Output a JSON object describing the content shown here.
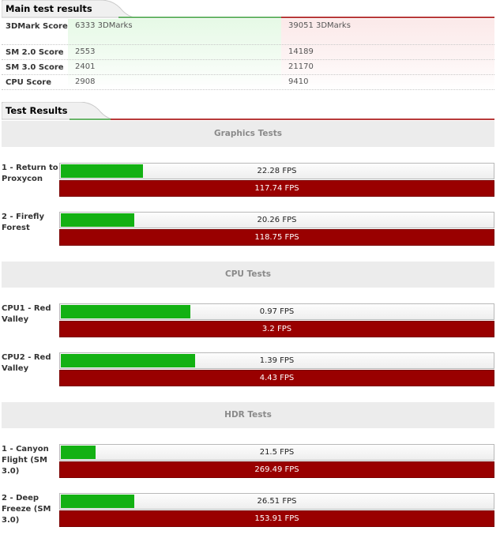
{
  "main_section": {
    "title": "Main test results",
    "rows": [
      {
        "label": "3DMark Score",
        "value_a": "6333 3DMarks",
        "value_b": "39051 3DMarks"
      },
      {
        "label": "SM 2.0 Score",
        "value_a": "2553",
        "value_b": "14189"
      },
      {
        "label": "SM 3.0 Score",
        "value_a": "2401",
        "value_b": "21170"
      },
      {
        "label": "CPU Score",
        "value_a": "2908",
        "value_b": "9410"
      }
    ]
  },
  "tests_section": {
    "title": "Test Results",
    "categories": [
      {
        "title": "Graphics Tests",
        "tests": [
          {
            "name": "1 - Return to Proxycon",
            "fps_a": "22.28 FPS",
            "fps_b": "117.74 FPS",
            "fill_fraction": 0.19
          },
          {
            "name": "2 - Firefly Forest",
            "fps_a": "20.26 FPS",
            "fps_b": "118.75 FPS",
            "fill_fraction": 0.17
          }
        ]
      },
      {
        "title": "CPU Tests",
        "tests": [
          {
            "name": "CPU1 - Red Valley",
            "fps_a": "0.97 FPS",
            "fps_b": "3.2 FPS",
            "fill_fraction": 0.3
          },
          {
            "name": "CPU2 - Red Valley",
            "fps_a": "1.39 FPS",
            "fps_b": "4.43 FPS",
            "fill_fraction": 0.31
          }
        ]
      },
      {
        "title": "HDR Tests",
        "tests": [
          {
            "name": "1 - Canyon Flight (SM 3.0)",
            "fps_a": "21.5 FPS",
            "fps_b": "269.49 FPS",
            "fill_fraction": 0.08
          },
          {
            "name": "2 - Deep Freeze (SM 3.0)",
            "fps_a": "26.51 FPS",
            "fps_b": "153.91 FPS",
            "fill_fraction": 0.17
          }
        ]
      }
    ]
  },
  "colors": {
    "green_bar": "#13b113",
    "red_bar": "#990000",
    "category_bg": "#ececec",
    "line_green": "#4caf50",
    "line_red": "#b22222"
  }
}
